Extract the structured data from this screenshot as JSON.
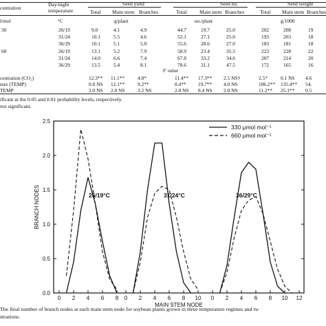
{
  "table": {
    "col_group_headers": [
      "Seed yield",
      "Seed no.",
      "Seed weight"
    ],
    "col_headers": {
      "concentration": "centration",
      "temperature_line1": "Day/night",
      "temperature_line2": "temperature",
      "sub": [
        "Total",
        "Main stem",
        "Branches",
        "Total",
        "Main stem",
        "Branches",
        "Total",
        "Main stem",
        "Branches"
      ]
    },
    "units": {
      "conc": "l/mol",
      "temp": "°C",
      "yield": "g/plant",
      "number": "no./plant",
      "weight": "g/1000"
    },
    "rows": [
      {
        "conc": "30",
        "temp": "26/19",
        "values": [
          "9.0",
          "4.1",
          "4.9",
          "44.7",
          "19.7",
          "25.0",
          "202",
          "208",
          "19"
        ]
      },
      {
        "conc": "",
        "temp": "31/24",
        "values": [
          "10.1",
          "5.5",
          "4.6",
          "52.1",
          "27.1",
          "25.0",
          "193",
          "203",
          "18"
        ]
      },
      {
        "conc": "",
        "temp": "36/29",
        "values": [
          "10.1",
          "5.1",
          "5.0",
          "55.6",
          "28.6",
          "27.0",
          "183",
          "181",
          "18"
        ]
      },
      {
        "conc": "60",
        "temp": "26/19",
        "values": [
          "13.1",
          "5.2",
          "7.9",
          "58.9",
          "23.4",
          "35.5",
          "223",
          "228",
          "22"
        ]
      },
      {
        "conc": "",
        "temp": "31/24",
        "values": [
          "14.0",
          "6.6",
          "7.4",
          "67.8",
          "33.2",
          "34.6",
          "207",
          "214",
          "20"
        ]
      },
      {
        "conc": "",
        "temp": "36/29",
        "values": [
          "13.5",
          "5.4",
          "8.1",
          "78.6",
          "31.1",
          "47.5",
          "172",
          "165",
          "16"
        ]
      }
    ],
    "fvalue_header": "F value",
    "fvalue_rows": [
      {
        "label": "centration (CO₂)",
        "values": [
          "12.3**",
          "11.1**",
          "4.8*",
          "11.4**",
          "17.3**",
          "2.5 NS†",
          "2.5*",
          "0.1 NS",
          "4.6"
        ]
      },
      {
        "label": "ture (TEMP)",
        "values": [
          "0.0 NS",
          "12.1**",
          "9.2**",
          "8.4**",
          "19.7**",
          "4.0 NS",
          "106.2**",
          "135.4**",
          "54."
        ]
      },
      {
        "label": "TEMP",
        "values": [
          "2.0 NS",
          "2.0 NS",
          "3.2 NS",
          "2.0 NS",
          "8.4 NS",
          "2.0 NS",
          "11.2**",
          "25.1**",
          "0.5"
        ]
      }
    ],
    "footnote_1": "ificant at the 0.05 and 0.01 probability levels, respectively.",
    "footnote_2": "not significant."
  },
  "chart_data": {
    "type": "line",
    "title": "",
    "xlabel": "MAIN STEM NODE",
    "ylabel": "BRANCH NODES",
    "ylim": [
      0,
      2.5
    ],
    "y_ticks": [
      "0.0",
      "0.5",
      "1.0",
      "1.5",
      "2.0",
      "2.5"
    ],
    "x_tick_labels": [
      "0",
      "2",
      "4",
      "6",
      "8",
      "0",
      "2",
      "4",
      "6",
      "8",
      "10",
      "0",
      "2",
      "4",
      "6",
      "8",
      "10",
      "12"
    ],
    "legend_placement": "top-right",
    "legend": [
      {
        "label": "330 μmol mol⁻¹",
        "style": "solid"
      },
      {
        "label": "660 μmol mol⁻¹",
        "style": "dashed"
      }
    ],
    "panels": [
      {
        "label": "26/19°C",
        "series": [
          {
            "name": "330 μmol mol⁻¹",
            "x": [
              1,
              2,
              3,
              4,
              5,
              6,
              7,
              8
            ],
            "values": [
              0.0,
              0.45,
              1.2,
              1.68,
              1.3,
              0.75,
              0.25,
              0.0
            ]
          },
          {
            "name": "660 μmol mol⁻¹",
            "x": [
              1,
              2,
              3,
              4,
              5,
              6,
              7,
              8
            ],
            "values": [
              0.25,
              1.2,
              2.38,
              1.95,
              1.3,
              0.6,
              0.2,
              0.05
            ]
          }
        ]
      },
      {
        "label": "31/24°C",
        "series": [
          {
            "name": "330 μmol mol⁻¹",
            "x": [
              1,
              2,
              3,
              4,
              5,
              6,
              7,
              8,
              9
            ],
            "values": [
              0.0,
              0.6,
              1.5,
              2.18,
              2.18,
              1.3,
              0.6,
              0.15,
              0.0
            ]
          },
          {
            "name": "660 μmol mol⁻¹",
            "x": [
              1,
              2,
              3,
              4,
              5,
              6,
              7,
              8,
              9,
              10
            ],
            "values": [
              0.0,
              0.45,
              1.1,
              1.45,
              1.55,
              1.5,
              1.1,
              0.6,
              0.2,
              0.05
            ]
          }
        ]
      },
      {
        "label": "36/29°C",
        "series": [
          {
            "name": "330 μmol mol⁻¹",
            "x": [
              1,
              2,
              3,
              4,
              5,
              6,
              7,
              8,
              9,
              10
            ],
            "values": [
              0.0,
              0.4,
              1.1,
              1.75,
              1.9,
              1.8,
              1.15,
              0.45,
              0.1,
              0.0
            ]
          },
          {
            "name": "660 μmol mol⁻¹",
            "x": [
              1,
              2,
              3,
              4,
              5,
              6,
              7,
              8,
              9,
              10,
              11
            ],
            "values": [
              0.0,
              0.3,
              0.8,
              1.2,
              1.35,
              1.4,
              1.15,
              0.75,
              0.35,
              0.1,
              0.0
            ]
          }
        ]
      }
    ]
  },
  "caption_line1": "The final number of branch nodes at each main stem node for soybean plants grown in three temperature regimes and tw",
  "caption_line2": "ntrations."
}
